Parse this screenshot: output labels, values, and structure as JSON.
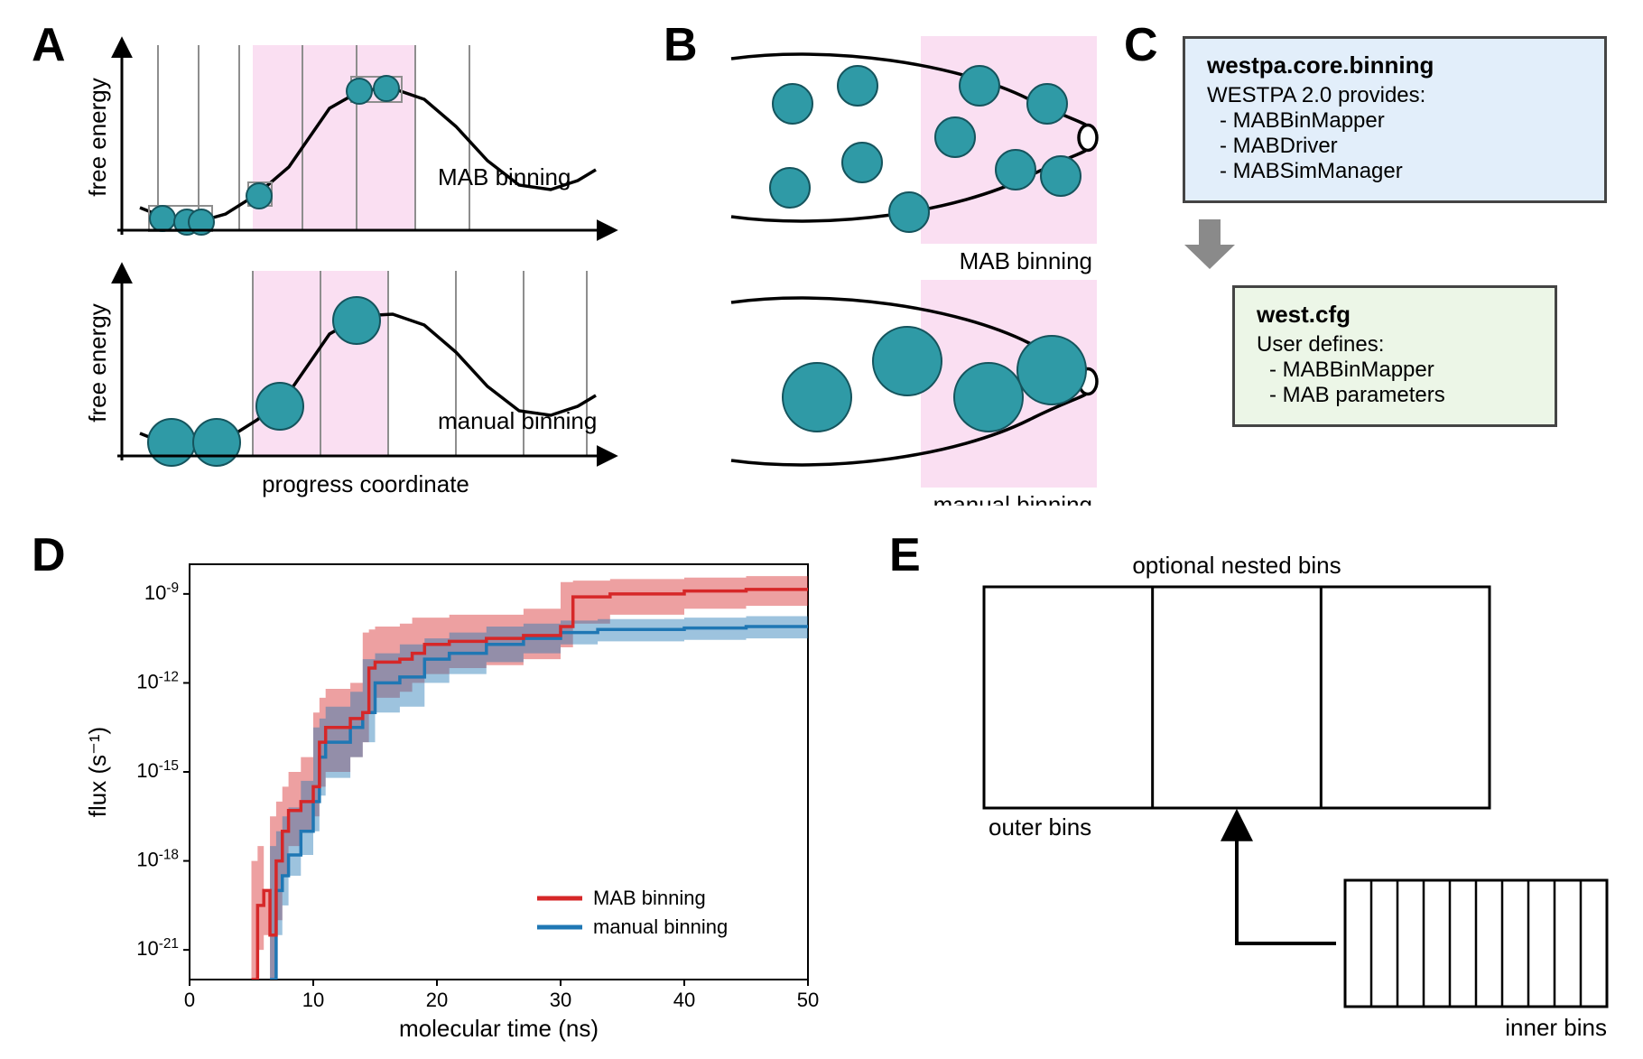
{
  "panel_labels": {
    "A": "A",
    "B": "B",
    "C": "C",
    "D": "D",
    "E": "E"
  },
  "colors": {
    "circle_fill": "#2f9aa6",
    "circle_stroke": "#15545d",
    "pink_band": "#fadff2",
    "box_blue_fill": "#e2eefa",
    "box_green_fill": "#ecf6e7",
    "box_stroke": "#444444",
    "arrow_gray": "#8a8a8a",
    "red_line": "#d62728",
    "red_band": "#d6272870",
    "blue_line": "#1f77b4",
    "blue_band": "#1f77b470",
    "axis": "#000000",
    "grid_gray": "#8e8e8e",
    "text": "#000000"
  },
  "A": {
    "top": {
      "ylabel": "free energy",
      "annotation": "MAB binning",
      "bins_x": [
        40,
        85,
        130,
        200,
        260,
        325,
        385
      ],
      "pink_x": [
        145,
        325
      ],
      "curve": [
        [
          20,
          180
        ],
        [
          45,
          190
        ],
        [
          80,
          197
        ],
        [
          115,
          187
        ],
        [
          150,
          165
        ],
        [
          185,
          135
        ],
        [
          230,
          70
        ],
        [
          265,
          50
        ],
        [
          300,
          48
        ],
        [
          335,
          60
        ],
        [
          370,
          90
        ],
        [
          405,
          128
        ],
        [
          440,
          155
        ],
        [
          475,
          160
        ],
        [
          505,
          150
        ],
        [
          525,
          138
        ]
      ],
      "points": [
        [
          45,
          192
        ],
        [
          72,
          196
        ],
        [
          88,
          196
        ],
        [
          152,
          167
        ],
        [
          263,
          51
        ],
        [
          293,
          48
        ]
      ],
      "r": 14,
      "boxes": [
        [
          30,
          178,
          70,
          28
        ],
        [
          140,
          152,
          26,
          26
        ],
        [
          254,
          35,
          56,
          28
        ]
      ]
    },
    "bottom": {
      "ylabel": "free energy",
      "xlabel": "progress coordinate",
      "annotation": "manual binning",
      "bins_x": [
        145,
        220,
        295,
        370,
        445,
        515
      ],
      "pink_x": [
        145,
        295
      ],
      "curve": [
        [
          20,
          180
        ],
        [
          45,
          190
        ],
        [
          80,
          197
        ],
        [
          115,
          187
        ],
        [
          150,
          165
        ],
        [
          185,
          135
        ],
        [
          230,
          70
        ],
        [
          265,
          50
        ],
        [
          300,
          48
        ],
        [
          335,
          60
        ],
        [
          370,
          90
        ],
        [
          405,
          128
        ],
        [
          440,
          155
        ],
        [
          475,
          160
        ],
        [
          505,
          150
        ],
        [
          525,
          138
        ]
      ],
      "points": [
        [
          55,
          190
        ],
        [
          105,
          190
        ],
        [
          175,
          150
        ],
        [
          260,
          55
        ]
      ],
      "r": 26
    },
    "label_fontsize": 26
  },
  "B": {
    "top": {
      "annotation": "MAB binning",
      "pink_x": [
        220,
        415
      ],
      "points": [
        [
          78,
          75
        ],
        [
          75,
          168
        ],
        [
          150,
          55
        ],
        [
          155,
          140
        ],
        [
          207,
          195
        ],
        [
          258,
          112
        ],
        [
          285,
          55
        ],
        [
          325,
          148
        ],
        [
          360,
          75
        ],
        [
          375,
          155
        ]
      ],
      "r": 22
    },
    "bottom": {
      "annotation": "manual binning",
      "pink_x": [
        220,
        415
      ],
      "points": [
        [
          105,
          130
        ],
        [
          205,
          90
        ],
        [
          295,
          130
        ],
        [
          365,
          100
        ]
      ],
      "r": 38
    },
    "label_fontsize": 26
  },
  "C": {
    "box1": {
      "title": "westpa.core.binning",
      "subtitle": "WESTPA 2.0 provides:",
      "items": [
        "- MABBinMapper",
        "- MABDriver",
        "- MABSimManager"
      ]
    },
    "box2": {
      "title": "west.cfg",
      "subtitle": "User defines:",
      "items": [
        "- MABBinMapper",
        "- MAB parameters"
      ]
    },
    "title_fontsize": 26,
    "body_fontsize": 24
  },
  "D": {
    "xlabel": "molecular time (ns)",
    "ylabel": "flux (s⁻¹)",
    "legend": {
      "mab": "MAB binning",
      "manual": "manual binning"
    },
    "xlim": [
      0,
      50
    ],
    "xticks": [
      0,
      10,
      20,
      30,
      40,
      50
    ],
    "ylim_exp": [
      -22,
      -8
    ],
    "yticks_exp": [
      -21,
      -18,
      -15,
      -12,
      -9
    ],
    "label_fontsize": 26,
    "tick_fontsize": 22,
    "legend_fontsize": 22,
    "series": {
      "mab": {
        "median": [
          [
            5,
            -22
          ],
          [
            5.5,
            -19.5
          ],
          [
            6,
            -19
          ],
          [
            6.5,
            -20.5
          ],
          [
            7,
            -18
          ],
          [
            7.5,
            -17
          ],
          [
            8,
            -16.3
          ],
          [
            9,
            -16
          ],
          [
            10,
            -15.5
          ],
          [
            10.5,
            -14
          ],
          [
            11,
            -13.5
          ],
          [
            13,
            -13.2
          ],
          [
            14,
            -13
          ],
          [
            14.5,
            -11.5
          ],
          [
            15,
            -11.3
          ],
          [
            17,
            -11.2
          ],
          [
            18,
            -11
          ],
          [
            19,
            -10.7
          ],
          [
            21,
            -10.6
          ],
          [
            24,
            -10.5
          ],
          [
            27,
            -10.4
          ],
          [
            30,
            -10.1
          ],
          [
            31,
            -9.1
          ],
          [
            34,
            -9
          ],
          [
            40,
            -8.9
          ],
          [
            45,
            -8.85
          ],
          [
            50,
            -8.8
          ]
        ],
        "lo": [
          [
            5,
            -22
          ],
          [
            5.5,
            -21
          ],
          [
            6,
            -20.5
          ],
          [
            6.5,
            -22
          ],
          [
            7,
            -20
          ],
          [
            7.5,
            -18.5
          ],
          [
            8,
            -17.5
          ],
          [
            9,
            -17
          ],
          [
            10,
            -16.5
          ],
          [
            10.5,
            -15.5
          ],
          [
            11,
            -15
          ],
          [
            13,
            -14.5
          ],
          [
            14,
            -14
          ],
          [
            14.5,
            -13
          ],
          [
            15,
            -12.5
          ],
          [
            17,
            -12.3
          ],
          [
            18,
            -12
          ],
          [
            19,
            -11.7
          ],
          [
            21,
            -11.5
          ],
          [
            24,
            -11.4
          ],
          [
            27,
            -11.2
          ],
          [
            30,
            -10.8
          ],
          [
            31,
            -10.0
          ],
          [
            34,
            -9.7
          ],
          [
            40,
            -9.5
          ],
          [
            45,
            -9.4
          ],
          [
            50,
            -9.3
          ]
        ],
        "hi": [
          [
            5,
            -22
          ],
          [
            5.5,
            -18
          ],
          [
            6,
            -17.5
          ],
          [
            6.5,
            -19
          ],
          [
            7,
            -16.5
          ],
          [
            7.5,
            -16
          ],
          [
            8,
            -15.5
          ],
          [
            9,
            -15
          ],
          [
            10,
            -14.5
          ],
          [
            10.5,
            -13
          ],
          [
            11,
            -12.5
          ],
          [
            13,
            -12.2
          ],
          [
            14,
            -12
          ],
          [
            14.5,
            -10.3
          ],
          [
            15,
            -10.2
          ],
          [
            17,
            -10.1
          ],
          [
            18,
            -10
          ],
          [
            19,
            -9.8
          ],
          [
            21,
            -9.8
          ],
          [
            24,
            -9.7
          ],
          [
            27,
            -9.7
          ],
          [
            30,
            -9.5
          ],
          [
            31,
            -8.6
          ],
          [
            34,
            -8.55
          ],
          [
            40,
            -8.5
          ],
          [
            45,
            -8.45
          ],
          [
            50,
            -8.4
          ]
        ]
      },
      "manual": {
        "median": [
          [
            6.5,
            -22
          ],
          [
            7,
            -19
          ],
          [
            7.5,
            -18.5
          ],
          [
            8,
            -17.8
          ],
          [
            9,
            -17
          ],
          [
            10,
            -16
          ],
          [
            10.5,
            -14.5
          ],
          [
            11,
            -14
          ],
          [
            13,
            -13.5
          ],
          [
            14,
            -13
          ],
          [
            15,
            -12
          ],
          [
            17,
            -11.8
          ],
          [
            19,
            -11.2
          ],
          [
            21,
            -11
          ],
          [
            24,
            -10.7
          ],
          [
            27,
            -10.5
          ],
          [
            30,
            -10.3
          ],
          [
            33,
            -10.2
          ],
          [
            40,
            -10.15
          ],
          [
            45,
            -10.1
          ],
          [
            50,
            -10.05
          ]
        ],
        "lo": [
          [
            6.5,
            -22
          ],
          [
            7,
            -20.5
          ],
          [
            7.5,
            -19.5
          ],
          [
            8,
            -18.5
          ],
          [
            9,
            -17.8
          ],
          [
            10,
            -17
          ],
          [
            10.5,
            -15.8
          ],
          [
            11,
            -15.2
          ],
          [
            13,
            -14.5
          ],
          [
            14,
            -14
          ],
          [
            15,
            -13
          ],
          [
            17,
            -12.8
          ],
          [
            19,
            -12
          ],
          [
            21,
            -11.7
          ],
          [
            24,
            -11.3
          ],
          [
            27,
            -11
          ],
          [
            30,
            -10.7
          ],
          [
            33,
            -10.6
          ],
          [
            40,
            -10.55
          ],
          [
            45,
            -10.5
          ],
          [
            50,
            -10.45
          ]
        ],
        "hi": [
          [
            6.5,
            -22
          ],
          [
            7,
            -17.5
          ],
          [
            7.5,
            -17
          ],
          [
            8,
            -16.5
          ],
          [
            9,
            -16.2
          ],
          [
            10,
            -15.3
          ],
          [
            10.5,
            -13.5
          ],
          [
            11,
            -13.2
          ],
          [
            13,
            -12.8
          ],
          [
            14,
            -12.3
          ],
          [
            15,
            -11.2
          ],
          [
            17,
            -11
          ],
          [
            19,
            -10.7
          ],
          [
            21,
            -10.5
          ],
          [
            24,
            -10.3
          ],
          [
            27,
            -10.1
          ],
          [
            30,
            -10
          ],
          [
            33,
            -9.9
          ],
          [
            40,
            -9.85
          ],
          [
            45,
            -9.8
          ],
          [
            50,
            -9.75
          ]
        ]
      }
    }
  },
  "E": {
    "title": "optional nested bins",
    "outer": "outer bins",
    "inner": "inner bins",
    "inner_n": 10,
    "label_fontsize": 26
  }
}
